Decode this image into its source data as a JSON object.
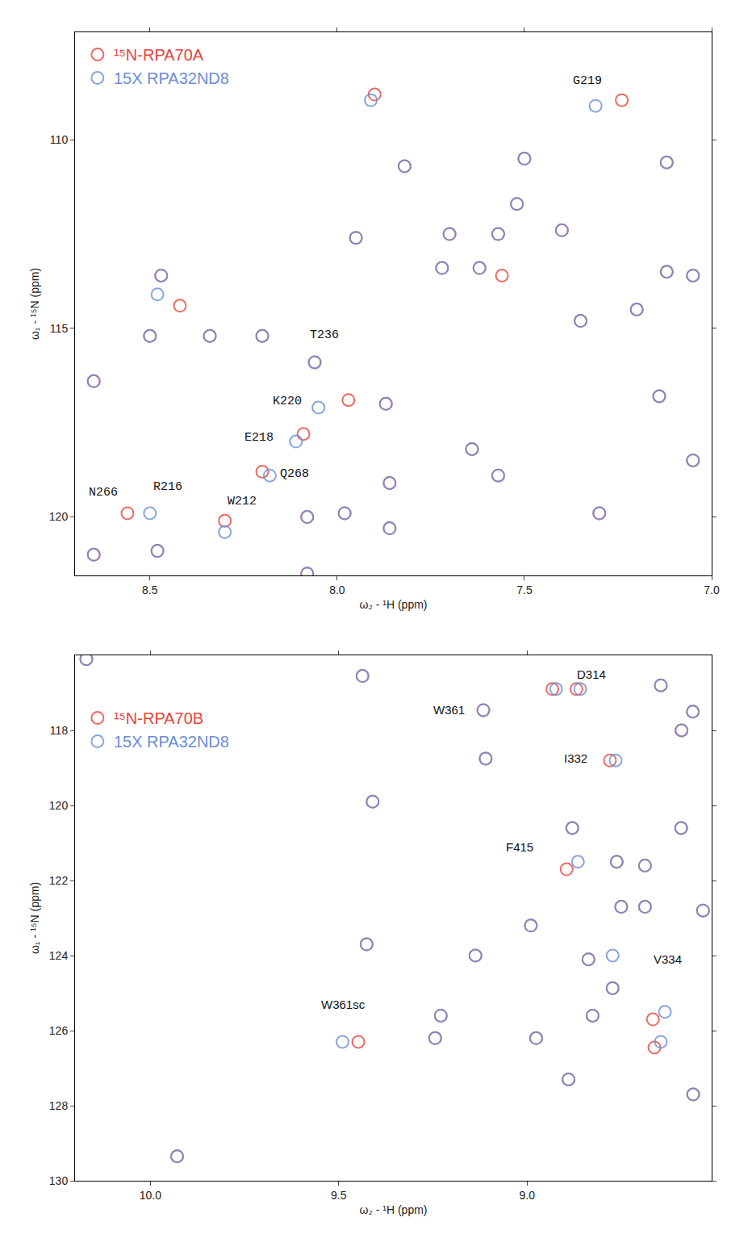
{
  "chart_data": [
    {
      "type": "scatter",
      "marker": "circle-open",
      "legend": "upper left",
      "x_label": "ω₂ - ¹H (ppm)",
      "y_label": "ω₁ - ¹⁵N (ppm)",
      "xlim": [
        8.7,
        7.0
      ],
      "ylim": [
        121.55,
        107.15
      ],
      "xticks": [
        8.5,
        {
          "value": 8,
          "label": "8.0"
        },
        7.5,
        {
          "value": 7,
          "label": "7.0"
        }
      ],
      "yticks": [
        110,
        115,
        120
      ],
      "series": [
        {
          "name": "¹⁵N-RPA70A",
          "color": "#e8453c",
          "x": [
            7.9,
            7.24,
            7.82,
            7.5,
            7.12,
            7.7,
            7.72,
            7.62,
            7.56,
            7.57,
            7.52,
            7.4,
            7.95,
            8.47,
            8.42,
            7.35,
            7.2,
            7.12,
            7.05,
            8.5,
            8.34,
            8.2,
            8.06,
            8.65,
            7.97,
            7.87,
            8.09,
            8.2,
            7.64,
            7.57,
            7.86,
            7.14,
            7.05,
            8.56,
            8.3,
            8.08,
            7.98,
            7.86,
            7.3,
            8.48,
            8.65,
            8.08
          ],
          "y": [
            108.8,
            108.95,
            110.7,
            110.5,
            110.6,
            112.5,
            113.4,
            113.4,
            113.6,
            112.5,
            111.7,
            112.4,
            112.6,
            113.6,
            114.4,
            114.8,
            114.5,
            113.5,
            113.6,
            115.2,
            115.2,
            115.2,
            115.9,
            116.4,
            116.9,
            117.0,
            117.8,
            118.8,
            118.2,
            118.9,
            119.1,
            116.8,
            118.5,
            119.9,
            120.1,
            120.0,
            119.9,
            120.3,
            119.9,
            120.9,
            121.0,
            121.5
          ]
        },
        {
          "name": "15X RPA32ND8",
          "color": "#6b8ed6",
          "x": [
            7.91,
            7.31,
            7.82,
            7.5,
            7.12,
            7.7,
            7.72,
            7.62,
            7.57,
            7.52,
            7.4,
            7.95,
            8.47,
            8.48,
            7.35,
            7.2,
            7.12,
            7.05,
            8.5,
            8.34,
            8.2,
            8.06,
            8.65,
            8.05,
            7.87,
            8.11,
            8.18,
            7.64,
            7.57,
            7.86,
            7.14,
            7.05,
            8.5,
            8.3,
            8.08,
            7.98,
            7.86,
            7.3,
            8.48,
            8.65,
            8.08
          ],
          "y": [
            108.95,
            109.1,
            110.7,
            110.5,
            110.6,
            112.5,
            113.4,
            113.4,
            112.5,
            111.7,
            112.4,
            112.6,
            113.6,
            114.1,
            114.8,
            114.5,
            113.5,
            113.6,
            115.2,
            115.2,
            115.2,
            115.9,
            116.4,
            117.1,
            117.0,
            118.0,
            118.9,
            118.2,
            118.9,
            119.1,
            116.8,
            118.5,
            119.9,
            120.4,
            120.0,
            119.9,
            120.3,
            119.9,
            120.9,
            121.0,
            121.5
          ]
        }
      ],
      "annotations": [
        {
          "text": "G219",
          "x": 7.331,
          "y": 108.44
        },
        {
          "text": "T236",
          "x": 8.035,
          "y": 115.19
        },
        {
          "text": "K220",
          "x": 8.134,
          "y": 116.93
        },
        {
          "text": "E218",
          "x": 8.209,
          "y": 117.9
        },
        {
          "text": "Q268",
          "x": 8.115,
          "y": 118.87
        },
        {
          "text": "N266",
          "x": 8.624,
          "y": 119.36
        },
        {
          "text": "R216",
          "x": 8.453,
          "y": 119.2
        },
        {
          "text": "W212",
          "x": 8.254,
          "y": 119.6
        }
      ]
    },
    {
      "type": "scatter",
      "marker": "circle-open",
      "legend": "upper left",
      "x_label": "ω₂ - ¹H (ppm)",
      "y_label": "ω₁ - ¹⁵N (ppm)",
      "xlim": [
        10.2,
        8.51
      ],
      "ylim": [
        130.0,
        116.0
      ],
      "xticks": [
        {
          "value": 10,
          "label": "10.0"
        },
        9.5,
        {
          "value": 9,
          "label": "9.0"
        }
      ],
      "yticks": [
        118,
        120,
        122,
        124,
        126,
        128,
        130
      ],
      "series": [
        {
          "name": "¹⁵N-RPA70B",
          "color": "#e8453c",
          "x": [
            10.17,
            9.437,
            9.116,
            8.933,
            8.869,
            8.645,
            8.56,
            8.59,
            8.78,
            9.11,
            9.41,
            8.88,
            8.895,
            8.591,
            8.762,
            8.687,
            8.75,
            8.687,
            8.533,
            8.99,
            9.426,
            9.137,
            8.837,
            8.773,
            8.666,
            8.826,
            9.229,
            9.244,
            9.448,
            8.976,
            8.662,
            8.89,
            8.559,
            9.929
          ],
          "y": [
            116.1,
            116.55,
            117.46,
            116.9,
            116.9,
            116.8,
            117.5,
            118.0,
            118.8,
            118.75,
            119.9,
            120.6,
            121.7,
            120.6,
            121.5,
            121.6,
            122.7,
            122.7,
            122.8,
            123.2,
            123.7,
            124.0,
            124.1,
            124.87,
            125.7,
            125.6,
            125.6,
            126.2,
            126.3,
            126.2,
            126.45,
            127.3,
            127.7,
            129.35
          ]
        },
        {
          "name": "15X RPA32ND8",
          "color": "#6b8ed6",
          "x": [
            10.17,
            9.437,
            9.116,
            8.923,
            8.859,
            8.645,
            8.56,
            8.59,
            8.765,
            9.11,
            9.41,
            8.88,
            8.865,
            8.591,
            8.762,
            8.687,
            8.75,
            8.687,
            8.533,
            8.99,
            9.426,
            9.137,
            8.837,
            8.773,
            8.773,
            8.634,
            8.826,
            9.229,
            9.244,
            9.49,
            8.976,
            8.645,
            8.89,
            8.559,
            9.929
          ],
          "y": [
            116.1,
            116.55,
            117.46,
            116.9,
            116.9,
            116.8,
            117.5,
            118.0,
            118.8,
            118.75,
            119.9,
            120.6,
            121.5,
            120.6,
            121.5,
            121.6,
            122.7,
            122.7,
            122.8,
            123.2,
            123.7,
            124.0,
            124.1,
            124.0,
            124.87,
            125.5,
            125.6,
            125.6,
            126.2,
            126.3,
            126.2,
            126.3,
            127.3,
            127.7,
            129.35
          ]
        }
      ],
      "annotations": [
        {
          "text": "W361",
          "x": 9.208,
          "y": 117.46
        },
        {
          "text": "D314",
          "x": 8.829,
          "y": 116.5
        },
        {
          "text": "I332",
          "x": 8.87,
          "y": 118.75
        },
        {
          "text": "F415",
          "x": 9.02,
          "y": 121.1
        },
        {
          "text": "V334",
          "x": 8.627,
          "y": 124.1
        },
        {
          "text": "W361sc",
          "x": 9.488,
          "y": 125.3
        }
      ]
    }
  ]
}
